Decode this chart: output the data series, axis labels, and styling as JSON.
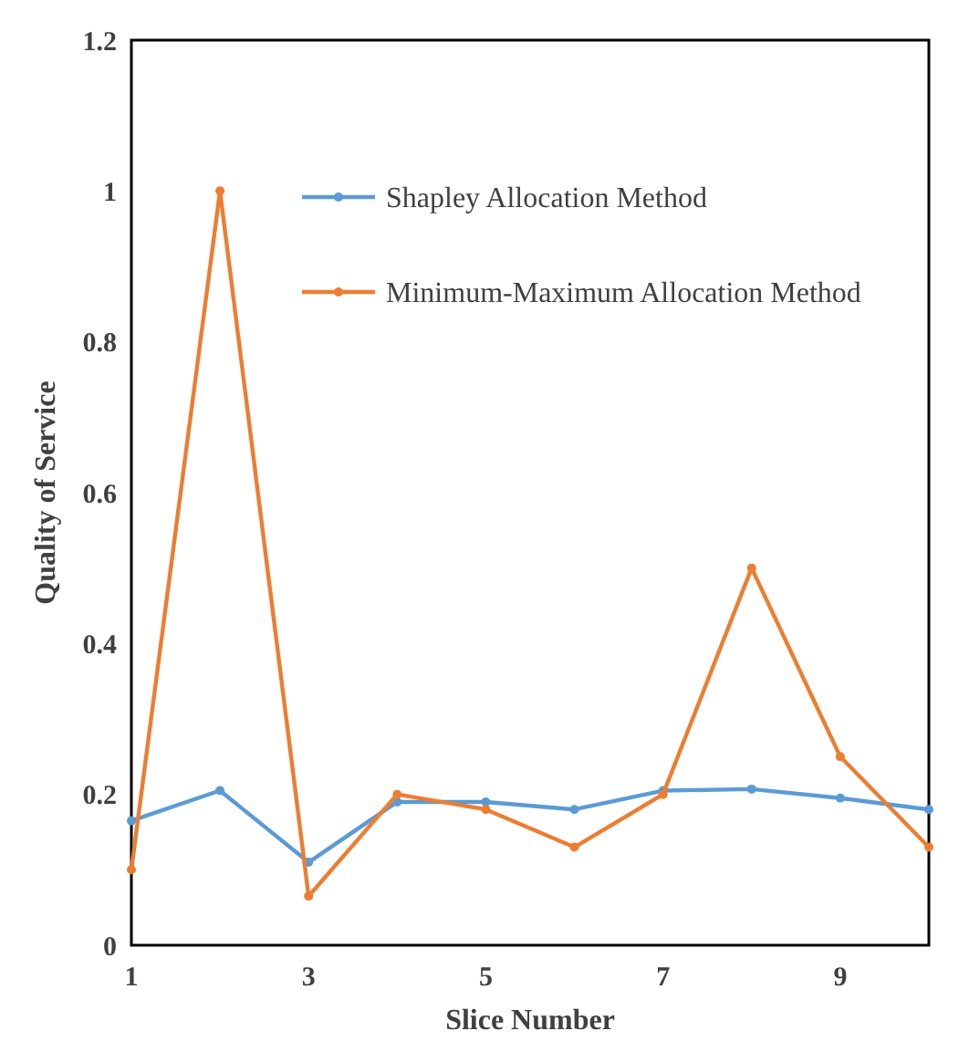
{
  "chart_data": {
    "type": "line",
    "xlabel": "Slice Number",
    "ylabel": "Quality of Service",
    "x": [
      1,
      2,
      3,
      4,
      5,
      6,
      7,
      8,
      9,
      10
    ],
    "series": [
      {
        "name": "Shapley Allocation Method",
        "color": "#5b9bd5",
        "values": [
          0.165,
          0.205,
          0.11,
          0.19,
          0.19,
          0.18,
          0.205,
          0.207,
          0.195,
          0.18
        ]
      },
      {
        "name": "Minimum-Maximum Allocation Method",
        "color": "#ed7d31",
        "values": [
          0.1,
          1.0,
          0.065,
          0.2,
          0.18,
          0.13,
          0.2,
          0.5,
          0.25,
          0.13
        ]
      }
    ],
    "xlim": [
      1,
      10
    ],
    "xticks": [
      1,
      3,
      5,
      7,
      9
    ],
    "ylim": [
      0,
      1.2
    ],
    "yticks": [
      0,
      0.2,
      0.4,
      0.6,
      0.8,
      1,
      1.2
    ],
    "grid": false,
    "legend": "top",
    "marker": "circle",
    "line_style": "solid"
  }
}
